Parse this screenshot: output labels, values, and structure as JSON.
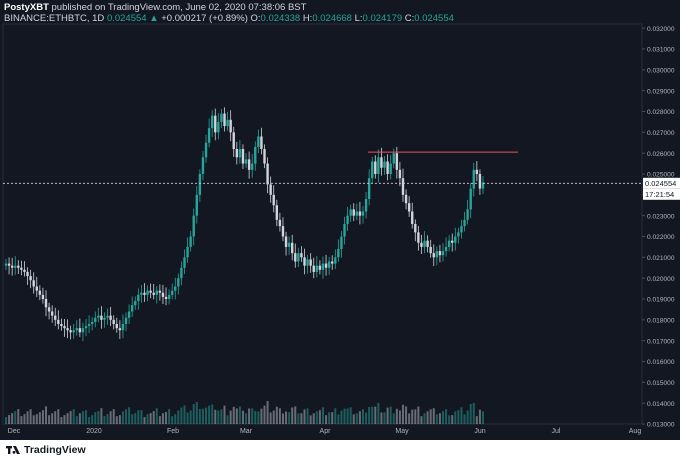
{
  "header": {
    "author": "PostyXBT",
    "published": "published on TradingView.com, June 02, 2020 07:38:06 BST",
    "symbol": "BINANCE:ETHBTC, 1D",
    "last": "0.024554",
    "change": "+0.000217 (+0.89%)",
    "o_label": "O:",
    "o": "0.024338",
    "h_label": "H:",
    "h": "0.024668",
    "l_label": "L:",
    "l": "0.024179",
    "c_label": "C:",
    "c": "0.024554"
  },
  "price_tag": "0.024554",
  "countdown": "17:21:54",
  "footer": {
    "brand": "TradingView"
  },
  "colors": {
    "bg": "#131722",
    "up": "#26a69a",
    "down": "#d1d4dc",
    "resistance": "#ef5350",
    "axis_text": "#b2b5be"
  },
  "chart_data": {
    "type": "candlestick",
    "title": "BINANCE:ETHBTC, 1D",
    "ylim": [
      0.013,
      0.0322
    ],
    "y_ticks": [
      "0.013000",
      "0.014000",
      "0.015000",
      "0.016000",
      "0.017000",
      "0.018000",
      "0.019000",
      "0.020000",
      "0.021000",
      "0.022000",
      "0.023000",
      "0.024000",
      "0.025000",
      "0.026000",
      "0.027000",
      "0.028000",
      "0.029000",
      "0.030000",
      "0.031000",
      "0.032000"
    ],
    "x_ticks": [
      "Dec",
      "2020",
      "Feb",
      "Mar",
      "Apr",
      "May",
      "Jun",
      "Jul",
      "Aug"
    ],
    "current_price": 0.024554,
    "resistance_level": 0.02605,
    "series": [
      {
        "close": [
          0.0207,
          0.0206,
          0.0205,
          0.0206,
          0.0205,
          0.0204,
          0.0203,
          0.0201,
          0.0199,
          0.0196,
          0.0194,
          0.0192,
          0.019,
          0.0186,
          0.0184,
          0.0182,
          0.018,
          0.0178,
          0.0177,
          0.0176,
          0.0175,
          0.0174,
          0.0175,
          0.0176,
          0.0174,
          0.0176,
          0.0177,
          0.0178,
          0.0179,
          0.0181,
          0.0182,
          0.018,
          0.0181,
          0.0182,
          0.018,
          0.0178,
          0.0176,
          0.0175,
          0.0178,
          0.0181,
          0.0184,
          0.0187,
          0.0189,
          0.0192,
          0.0193,
          0.0192,
          0.0194,
          0.0193,
          0.0192,
          0.0194,
          0.0193,
          0.0191,
          0.019,
          0.0192,
          0.0194,
          0.0196,
          0.02,
          0.0205,
          0.021,
          0.0215,
          0.022,
          0.023,
          0.024,
          0.025,
          0.0258,
          0.0265,
          0.0272,
          0.0278,
          0.027,
          0.0275,
          0.0279,
          0.0273,
          0.0276,
          0.027,
          0.0262,
          0.0258,
          0.0262,
          0.0255,
          0.0257,
          0.0252,
          0.0255,
          0.0263,
          0.0268,
          0.0262,
          0.0255,
          0.0245,
          0.024,
          0.0235,
          0.0228,
          0.0225,
          0.022,
          0.0215,
          0.0217,
          0.0212,
          0.0208,
          0.0212,
          0.021,
          0.0206,
          0.0209,
          0.0206,
          0.0203,
          0.0206,
          0.0204,
          0.0207,
          0.0205,
          0.0208,
          0.0207,
          0.021,
          0.0214,
          0.022,
          0.0226,
          0.023,
          0.0233,
          0.023,
          0.0232,
          0.023,
          0.0232,
          0.0238,
          0.0248,
          0.0256,
          0.025,
          0.0258,
          0.0253,
          0.0256,
          0.025,
          0.0255,
          0.026,
          0.0252,
          0.0248,
          0.024,
          0.0236,
          0.0232,
          0.0226,
          0.0222,
          0.0217,
          0.0215,
          0.0218,
          0.0215,
          0.0212,
          0.021,
          0.0213,
          0.0211,
          0.0213,
          0.0215,
          0.0218,
          0.0217,
          0.022,
          0.0222,
          0.0225,
          0.0228,
          0.0233,
          0.0243,
          0.0252,
          0.025,
          0.0243,
          0.0246
        ]
      }
    ]
  }
}
